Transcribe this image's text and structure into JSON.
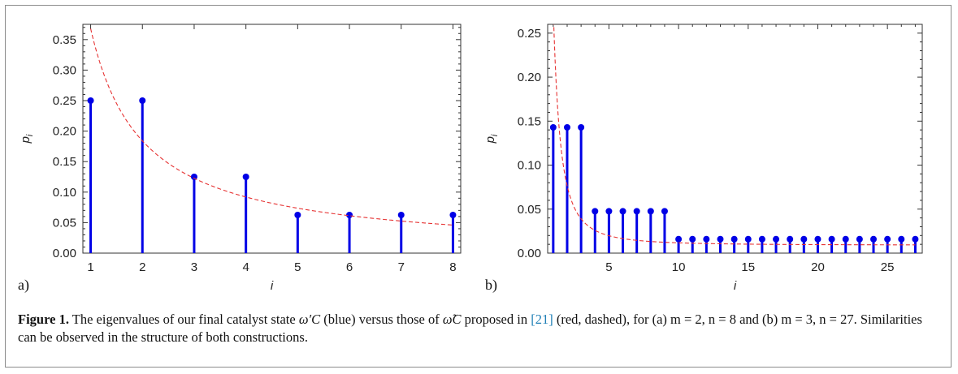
{
  "figure": {
    "caption_label": "Figure 1.",
    "caption_part1": " The eigenvalues of our final catalyst state ",
    "caption_sym1": "ω′C",
    "caption_part2": " (blue) versus those of ",
    "caption_sym2": "ω̃C",
    "caption_part3": " proposed in ",
    "caption_ref": "[21]",
    "caption_part4": " (red, dashed), for (a) m = 2, n = 8 and (b) m = 3, n = 27. Similarities can be observed in the structure of both constructions."
  },
  "colors": {
    "stem": "#0000e6",
    "curve": "#e63333",
    "axis": "#333333"
  },
  "chart_data": [
    {
      "type": "scatter",
      "panel_label": "a)",
      "xlabel": "i",
      "ylabel": "p_i",
      "xlim": [
        0.85,
        8.15
      ],
      "ylim": [
        0,
        0.375
      ],
      "xticks": [
        1,
        2,
        3,
        4,
        5,
        6,
        7,
        8
      ],
      "yticks": [
        0.0,
        0.05,
        0.1,
        0.15,
        0.2,
        0.25,
        0.3,
        0.35
      ],
      "ytick_labels": [
        "0.00",
        "0.05",
        "0.10",
        "0.15",
        "0.20",
        "0.25",
        "0.30",
        "0.35"
      ],
      "series": [
        {
          "style": "stem",
          "color": "#0000e6",
          "x": [
            1,
            2,
            3,
            4,
            5,
            6,
            7,
            8
          ],
          "values": [
            0.25,
            0.25,
            0.125,
            0.125,
            0.0625,
            0.0625,
            0.0625,
            0.0625
          ]
        },
        {
          "style": "dashed-curve",
          "color": "#e63333",
          "function": "c/x",
          "c": 0.368,
          "x_range": [
            1,
            8
          ]
        }
      ]
    },
    {
      "type": "scatter",
      "panel_label": "b)",
      "xlabel": "i",
      "ylabel": "p_i",
      "xlim": [
        0.6,
        27.5
      ],
      "ylim": [
        0,
        0.26
      ],
      "xticks": [
        5,
        10,
        15,
        20,
        25
      ],
      "yticks": [
        0.0,
        0.05,
        0.1,
        0.15,
        0.2,
        0.25
      ],
      "ytick_labels": [
        "0.00",
        "0.05",
        "0.10",
        "0.15",
        "0.20",
        "0.25"
      ],
      "series": [
        {
          "style": "stem",
          "color": "#0000e6",
          "x": [
            1,
            2,
            3,
            4,
            5,
            6,
            7,
            8,
            9,
            10,
            11,
            12,
            13,
            14,
            15,
            16,
            17,
            18,
            19,
            20,
            21,
            22,
            23,
            24,
            25,
            26,
            27
          ],
          "values": [
            0.1429,
            0.1429,
            0.1429,
            0.0476,
            0.0476,
            0.0476,
            0.0476,
            0.0476,
            0.0476,
            0.0159,
            0.0159,
            0.0159,
            0.0159,
            0.0159,
            0.0159,
            0.0159,
            0.0159,
            0.0159,
            0.0159,
            0.0159,
            0.0159,
            0.0159,
            0.0159,
            0.0159,
            0.0159,
            0.0159,
            0.0159
          ]
        },
        {
          "style": "dashed-curve",
          "color": "#e63333",
          "function": "c/x^2 + d",
          "c": 0.27,
          "d": 0.009,
          "x_range": [
            1,
            27
          ]
        }
      ]
    }
  ]
}
